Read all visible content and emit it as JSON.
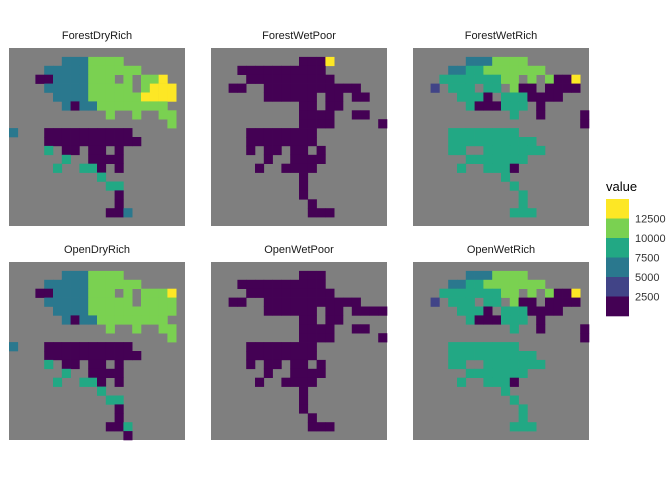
{
  "chart_data": {
    "type": "heatmap",
    "legend": {
      "title": "value",
      "position": "right",
      "breaks": [
        "12500",
        "10000",
        "7500",
        "5000",
        "2500"
      ],
      "colors": [
        "#fde725",
        "#7ad151",
        "#22a884",
        "#2a788e",
        "#414487",
        "#440154"
      ]
    },
    "na_color": "#7f7f7f",
    "grid": {
      "rows": 20,
      "cols": 20
    },
    "panels": [
      {
        "title": "ForestDryRich",
        "cells": [
          "....................",
          "......CCCGGGG.......",
          "....CCCCCGGGGGG.....",
          "...PPCCCCGGG.G.GGY..",
          "....CCCCCGGGGG.GYYY.",
          ".....CCCCGGGGGGYYYY.",
          "......CPCCGGGGGGGG..",
          "...........G..G..GG.",
          "..................G.",
          "C...PPPPPPPPPP......",
          "....PPPPPPPPPPP.....",
          "....T.PP.PP.P.......",
          "......T..PPPP.......",
          ".....T..TTP.P.......",
          "..........T.........",
          "...........TT.......",
          "............P.......",
          "............P.......",
          "...........PPC......",
          "...................."
        ]
      },
      {
        "title": "ForestWetPoor",
        "cells": [
          "....................",
          "..........PPPY......",
          "...PPPPPPPPPP.......",
          "....PPPPPPPPPP......",
          "..PP..PPPPPPPPPPP...",
          "......PPPPPP.PP.PP..",
          "..........PP.PP.....",
          "..........PPPP..PP..",
          "..........PPPP.....P",
          "....PPPPPPPP........",
          "....PPPPPPPP........",
          "....P.PP.PP.P.......",
          "......P..PPPP.......",
          ".....P..PPPP........",
          "..........P.........",
          "..........P.........",
          "..........P.........",
          "...........P........",
          "...........PPP......",
          "...................."
        ]
      },
      {
        "title": "ForestWetRich",
        "cells": [
          "....................",
          "......CCCGGGG.......",
          "....CCTTGGGGGGG.....",
          "...TTTTTTTGG.G.GPPY.",
          "..B.TTT.TT.GPP.PPPP.",
          ".....TTTP.TTTPPPP...",
          "......TPPPTTT.P.....",
          "...........T..P....P",
          "...................P",
          "....TTTTTTTT........",
          "....TTTTTTTTTT......",
          "....TT..TTTTTTT.....",
          "......TTTTTTT.......",
          ".....T..TTTP........",
          "..........T.........",
          "...........T........",
          "............T.......",
          "............T.......",
          "...........TTT......",
          "...................."
        ]
      },
      {
        "title": "OpenDryRich",
        "cells": [
          "....................",
          "......CCCGGGG.......",
          "....CCCCCGGGGGG.....",
          "...PPCCCCGGG.G.GGGY.",
          "....CCCCCGGGGG.GGGG.",
          ".....CCCCGGGGGGGGGG.",
          "......CPCCGGGGGGGG..",
          "...........G..G..GG.",
          "..................G.",
          "C...PPPPPPPPPP......",
          "....PPPPPPPPPPP.....",
          "....T.PP.PP.P.......",
          "......T..PPPP.......",
          ".....T..TTP.P.......",
          "..........T.........",
          "...........TT.......",
          "............P.......",
          "............P.......",
          "...........PPT......",
          ".............P......"
        ]
      },
      {
        "title": "OpenWetPoor",
        "cells": [
          "....................",
          "..........PPP.......",
          "...PPPPPPPPPP.......",
          "....PPPPPPPPPP......",
          "..PP..PPPPPPPPPPP...",
          "......PPPPPP.PP.PPPP",
          "..........PP.PP.....",
          "..........PPPP..PP..",
          "..........PPPP.....P",
          "....PPPPPPPP........",
          "....PPPPPPPP........",
          "....P.PP.PP.P.......",
          "......P..PPPP.......",
          ".....P..PPPP........",
          "..........P.........",
          "..........P.........",
          "..........P.........",
          "...........P........",
          "...........PPP......",
          "...................."
        ]
      },
      {
        "title": "OpenWetRich",
        "cells": [
          "....................",
          "......CCCGGGG.......",
          "....CCTTGGGGGGG.....",
          "...TTTTTTTGG.G.GPPY.",
          "..B.TTT.TT.GPP.PPPP.",
          ".....TTTP.TTTPPPP...",
          "......TPPPTTT.P.....",
          "...........T..P....P",
          "...................P",
          "....TTTTTTTT........",
          "....TTTTTTTTTT......",
          "....TT..TTTTTTT.....",
          "......TTTTTTT.......",
          ".....T..TTTP........",
          "..........T.........",
          "...........T........",
          "............T.......",
          "............T.......",
          "...........TTT......",
          "...................."
        ]
      }
    ],
    "cell_value_map": {
      "P": "2500 and below",
      "B": "5000",
      "C": "7500",
      "T": "10000",
      "G": "12500-band green",
      "Y": "above 12500",
      ".": "NA"
    }
  }
}
